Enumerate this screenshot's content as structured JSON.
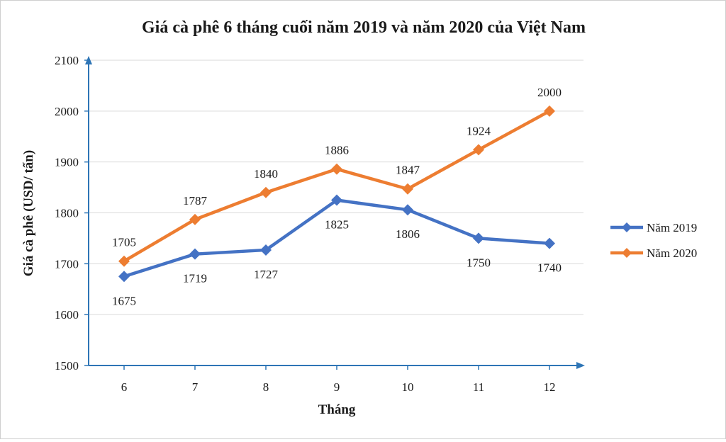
{
  "chart_data": {
    "type": "line",
    "title": "Giá cà phê 6 tháng cuối năm  2019 và năm 2020 của Việt Nam",
    "xlabel": "Tháng",
    "ylabel": "Giá cà phê (USD/ tấn)",
    "categories": [
      "6",
      "7",
      "8",
      "9",
      "10",
      "11",
      "12"
    ],
    "ylim": [
      1500,
      2100
    ],
    "yticks": [
      1500,
      1600,
      1700,
      1800,
      1900,
      2000,
      2100
    ],
    "grid": true,
    "legend_position": "right",
    "series": [
      {
        "name": "Năm 2019",
        "color": "#4472C4",
        "values": [
          1675,
          1719,
          1727,
          1825,
          1806,
          1750,
          1740
        ],
        "label_side": [
          "below",
          "below",
          "below",
          "below",
          "below",
          "below",
          "below"
        ]
      },
      {
        "name": "Năm 2020",
        "color": "#ED7D31",
        "values": [
          1705,
          1787,
          1840,
          1886,
          1847,
          1924,
          2000
        ],
        "label_side": [
          "above",
          "above",
          "above",
          "above",
          "above",
          "above",
          "above"
        ]
      }
    ]
  }
}
